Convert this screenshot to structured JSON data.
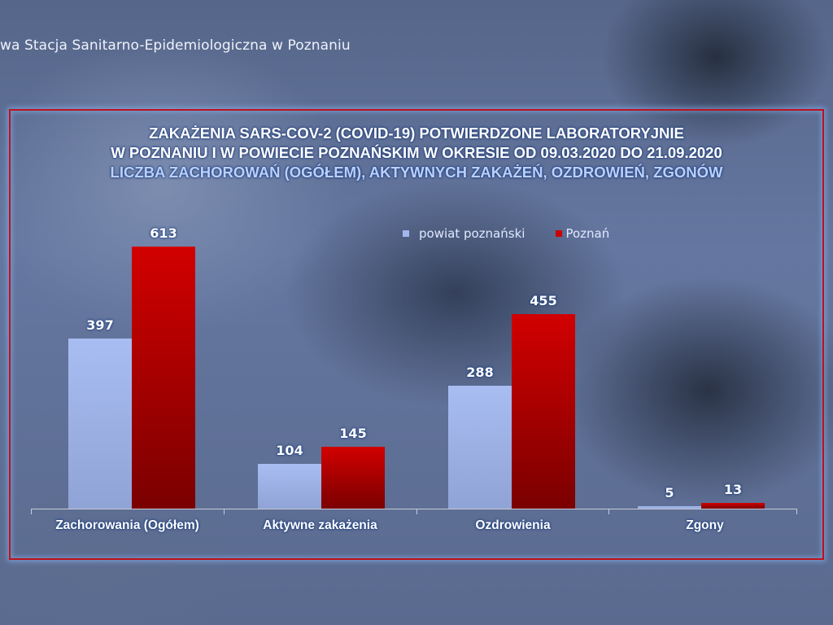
{
  "header": {
    "institution_text": "wa Stacja Sanitarno-Epidemiologiczna w Poznaniu"
  },
  "chart_data": {
    "type": "bar",
    "title": "ZAKAŻENIA SARS-COV-2 (COVID-19) POTWIERDZONE LABORATORYJNIE W POZNANIU I W POWIECIE POZNAŃSKIM W OKRESIE OD 09.03.2020 DO 21.09.2020",
    "title_lines": [
      "ZAKAŻENIA SARS-COV-2 (COVID-19) POTWIERDZONE LABORATORYJNIE",
      "W POZNANIU I W POWIECIE POZNAŃSKIM W OKRESIE OD 09.03.2020 DO 21.09.2020"
    ],
    "subtitle": "LICZBA ZACHOROWAŃ (OGÓŁEM), AKTYWNYCH ZAKAŻEŃ, OZDROWIEŃ, ZGONÓW",
    "categories": [
      "Zachorowania (Ogółem)",
      "Aktywne zakażenia",
      "Ozdrowienia",
      "Zgony"
    ],
    "series": [
      {
        "name": "powiat poznański",
        "color": "#a3b7ee",
        "values": [
          397,
          104,
          288,
          5
        ]
      },
      {
        "name": "Poznań",
        "color": "#c80000",
        "values": [
          613,
          145,
          455,
          13
        ]
      }
    ],
    "xlabel": "",
    "ylabel": "",
    "ylim": [
      0,
      650
    ],
    "grid": false,
    "data_labels": true,
    "legend_position": "top-right"
  },
  "colors": {
    "frame": "#c0101a",
    "background": "#5a6a8f",
    "bar_light": "#a3b7ee",
    "bar_red": "#c80000"
  }
}
